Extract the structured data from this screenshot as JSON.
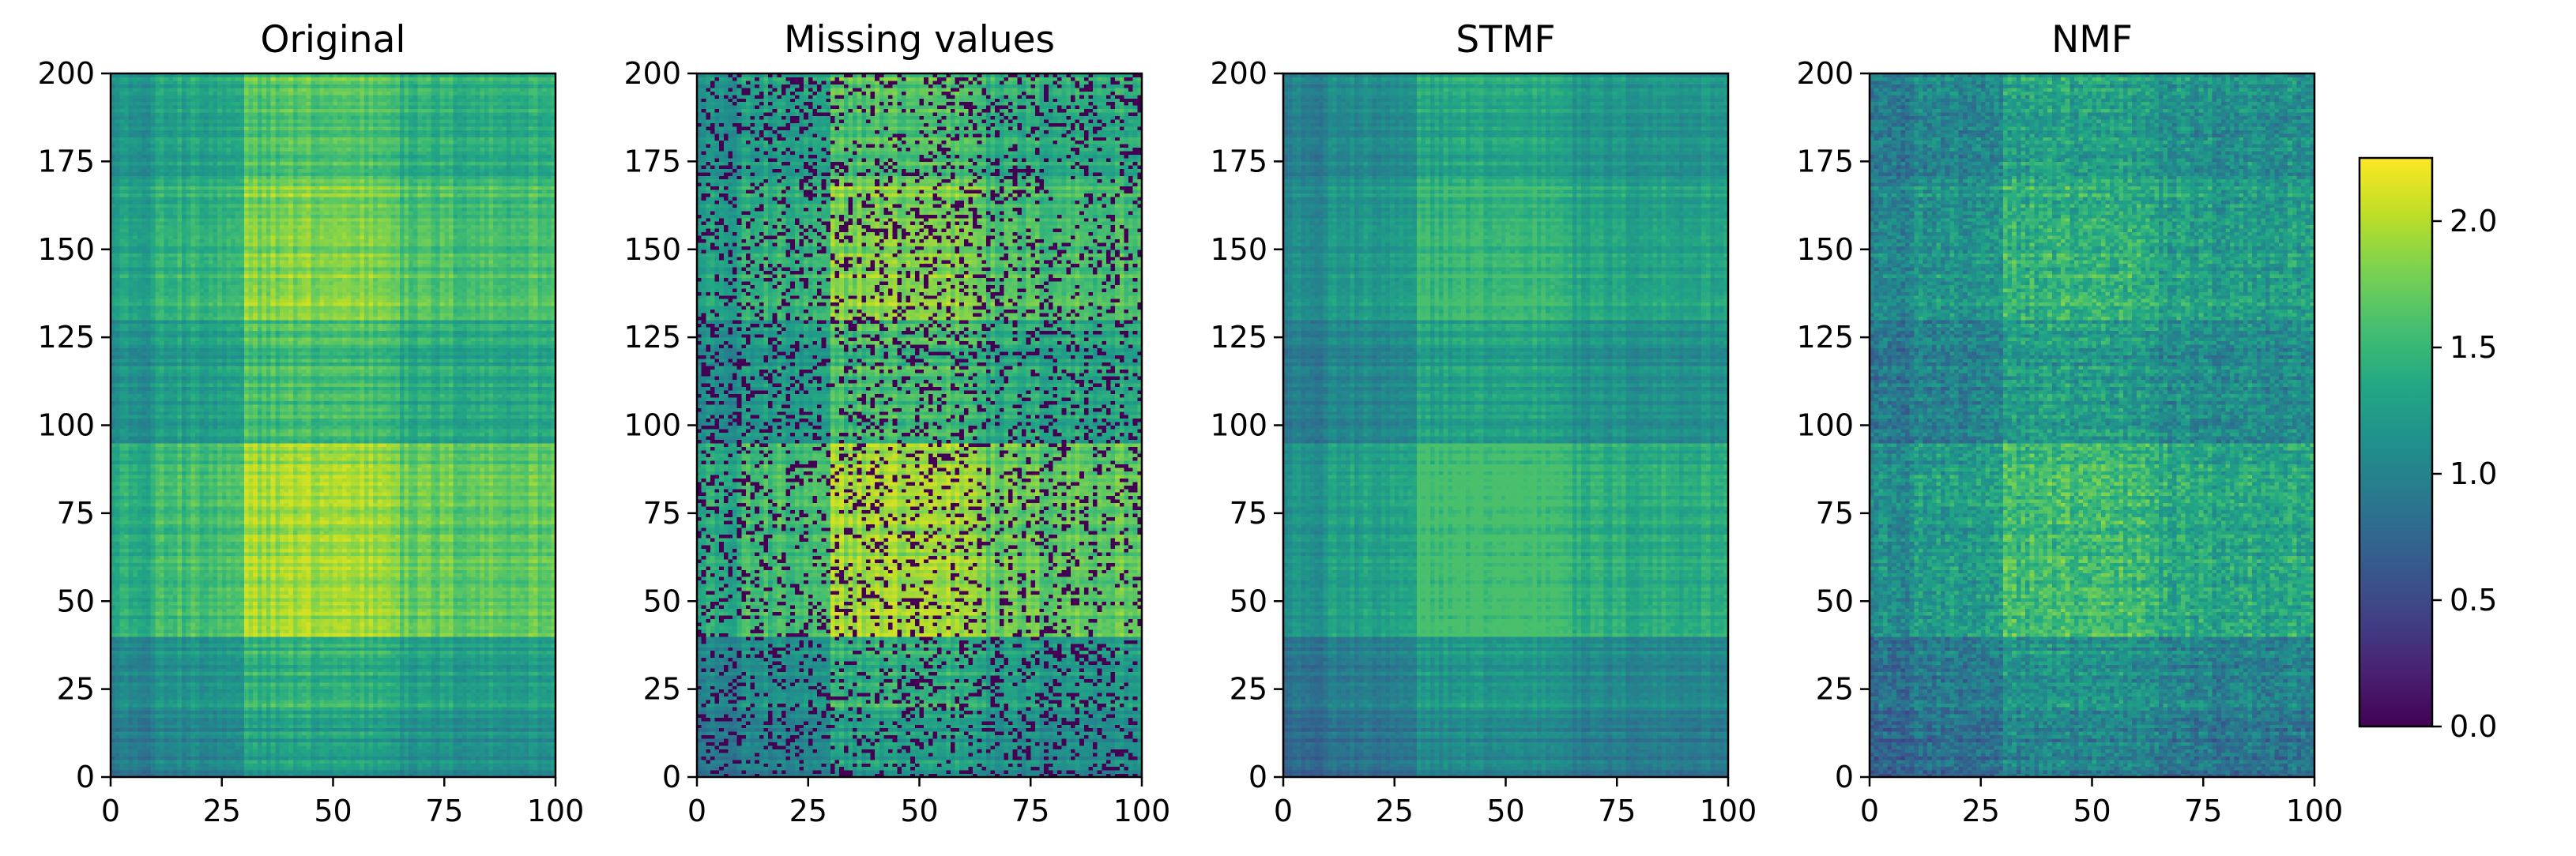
{
  "chart_data": {
    "type": "heatmap",
    "colormap": "viridis",
    "colorbar": {
      "range": [
        0.0,
        2.25
      ],
      "ticks": [
        0.0,
        0.5,
        1.0,
        1.5,
        2.0
      ],
      "tick_labels": [
        "0.0",
        "0.5",
        "1.0",
        "1.5",
        "2.0"
      ]
    },
    "panels": [
      {
        "title": "Original",
        "xlim": [
          0,
          100
        ],
        "ylim": [
          0,
          200
        ],
        "x_ticks": [
          0,
          25,
          50,
          75,
          100
        ],
        "x_tick_labels": [
          "0",
          "25",
          "50",
          "75",
          "100"
        ],
        "y_ticks": [
          0,
          25,
          50,
          75,
          100,
          125,
          150,
          175,
          200
        ],
        "y_tick_labels": [
          "0",
          "25",
          "50",
          "75",
          "100",
          "125",
          "150",
          "175",
          "200"
        ],
        "mean_value": 1.45,
        "max_value": 2.1,
        "missing_fraction": 0.0
      },
      {
        "title": "Missing values",
        "xlim": [
          0,
          100
        ],
        "ylim": [
          0,
          200
        ],
        "x_ticks": [
          0,
          25,
          50,
          75,
          100
        ],
        "x_tick_labels": [
          "0",
          "25",
          "50",
          "75",
          "100"
        ],
        "y_ticks": [
          0,
          25,
          50,
          75,
          100,
          125,
          150,
          175,
          200
        ],
        "y_tick_labels": [
          "0",
          "25",
          "50",
          "75",
          "100",
          "125",
          "150",
          "175",
          "200"
        ],
        "mean_value": 1.45,
        "max_value": 2.1,
        "missing_fraction": 0.2
      },
      {
        "title": "STMF",
        "xlim": [
          0,
          100
        ],
        "ylim": [
          0,
          200
        ],
        "x_ticks": [
          0,
          25,
          50,
          75,
          100
        ],
        "x_tick_labels": [
          "0",
          "25",
          "50",
          "75",
          "100"
        ],
        "y_ticks": [
          0,
          25,
          50,
          75,
          100,
          125,
          150,
          175,
          200
        ],
        "y_tick_labels": [
          "0",
          "25",
          "50",
          "75",
          "100",
          "125",
          "150",
          "175",
          "200"
        ],
        "mean_value": 1.2,
        "max_value": 1.6,
        "missing_fraction": 0.0
      },
      {
        "title": "NMF",
        "xlim": [
          0,
          100
        ],
        "ylim": [
          0,
          200
        ],
        "x_ticks": [
          0,
          25,
          50,
          75,
          100
        ],
        "x_tick_labels": [
          "0",
          "25",
          "50",
          "75",
          "100"
        ],
        "y_ticks": [
          0,
          25,
          50,
          75,
          100,
          125,
          150,
          175,
          200
        ],
        "y_tick_labels": [
          "0",
          "25",
          "50",
          "75",
          "100",
          "125",
          "150",
          "175",
          "200"
        ],
        "mean_value": 1.15,
        "max_value": 1.9,
        "missing_fraction": 0.0
      }
    ]
  }
}
